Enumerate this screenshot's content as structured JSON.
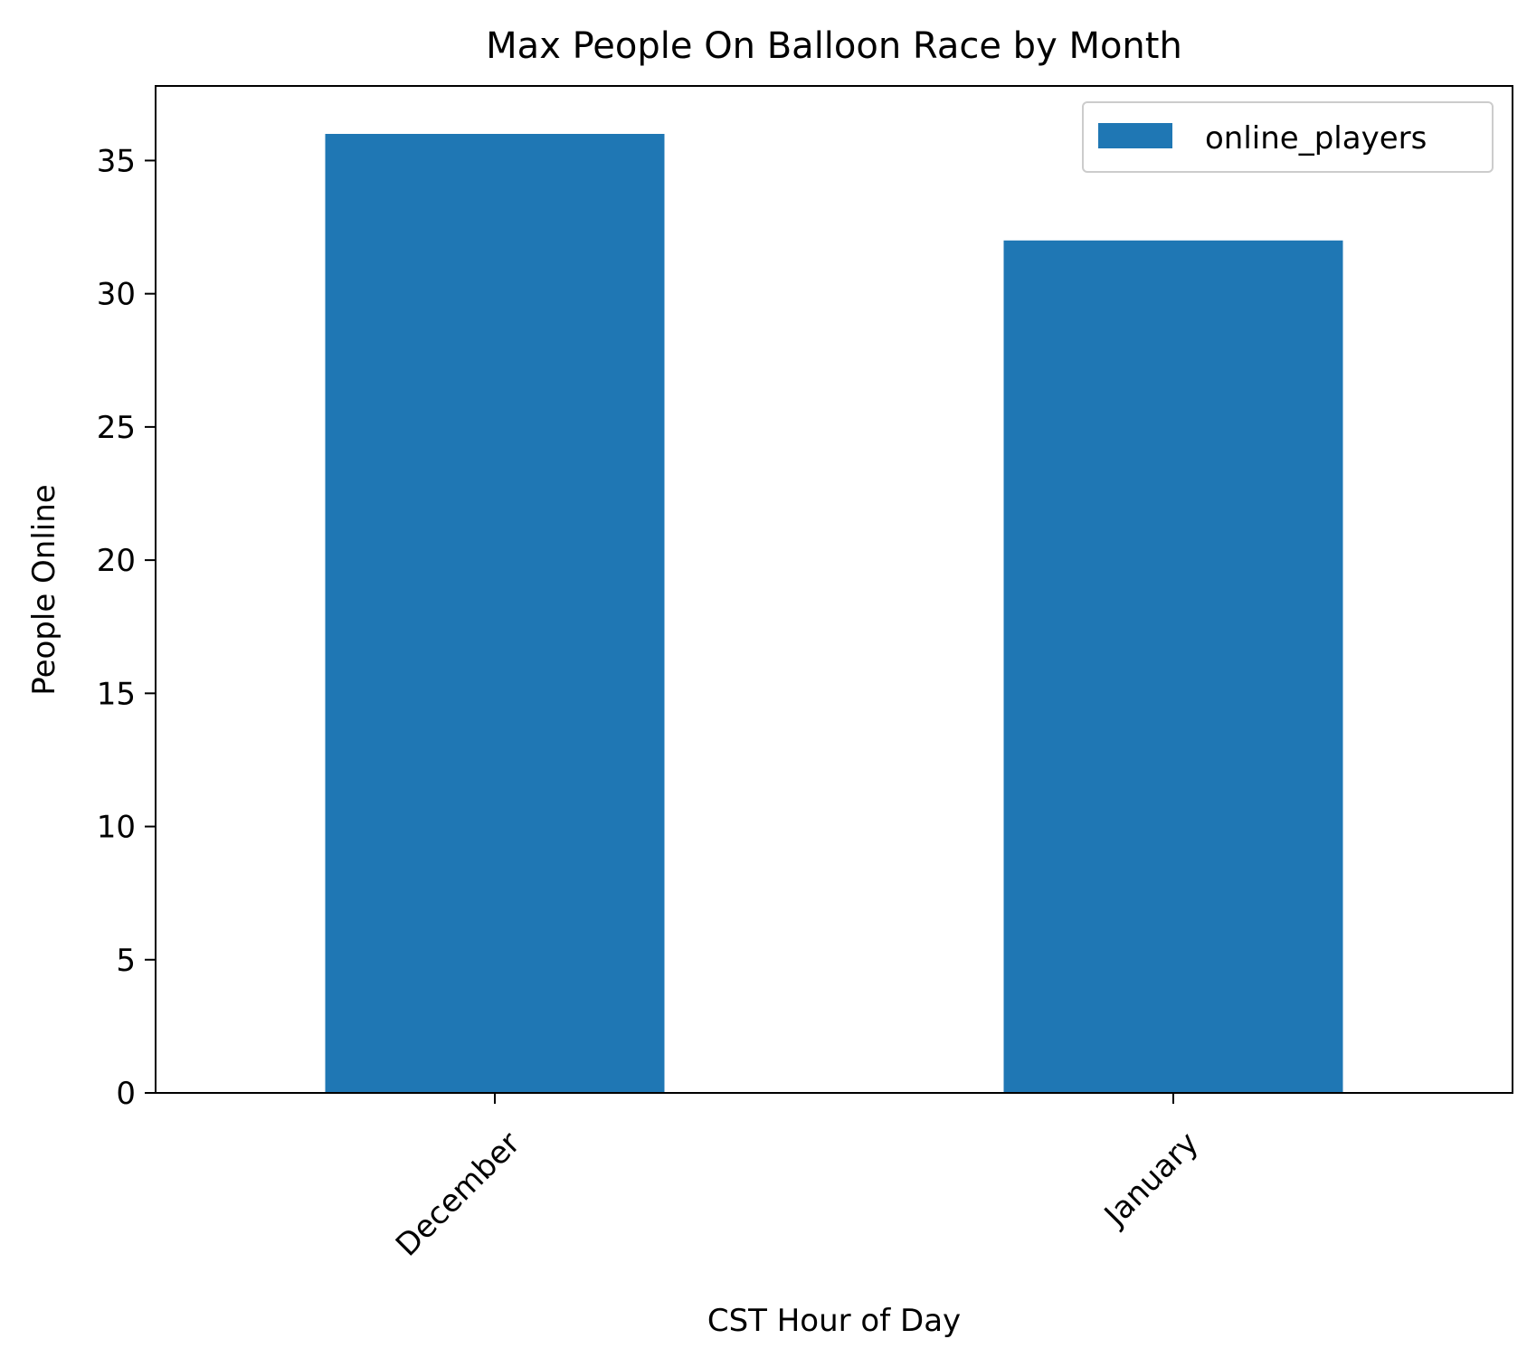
{
  "chart_data": {
    "type": "bar",
    "title": "Max People On Balloon Race by Month",
    "xlabel": "CST Hour of Day",
    "ylabel": "People Online",
    "categories": [
      "December",
      "January"
    ],
    "series": [
      {
        "name": "online_players",
        "values": [
          36,
          32
        ],
        "color": "#1f77b4"
      }
    ],
    "ylim": [
      0,
      37.8
    ],
    "yticks": [
      0,
      5,
      10,
      15,
      20,
      25,
      30,
      35
    ],
    "xtick_rotation_deg": 45,
    "grid": false,
    "legend": {
      "position": "top-right"
    }
  }
}
